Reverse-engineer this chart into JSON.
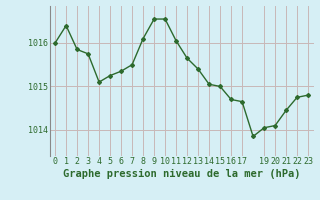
{
  "x": [
    0,
    1,
    2,
    3,
    4,
    5,
    6,
    7,
    8,
    9,
    10,
    11,
    12,
    13,
    14,
    15,
    16,
    17,
    18,
    19,
    20,
    21,
    22,
    23
  ],
  "y": [
    1016.0,
    1016.4,
    1015.85,
    1015.75,
    1015.1,
    1015.25,
    1015.35,
    1015.5,
    1016.1,
    1016.55,
    1016.55,
    1016.05,
    1015.65,
    1015.4,
    1015.05,
    1015.0,
    1014.7,
    1014.65,
    1013.85,
    1014.05,
    1014.1,
    1014.45,
    1014.75,
    1014.8
  ],
  "line_color": "#2d6a2d",
  "marker": "D",
  "markersize": 2.0,
  "linewidth": 1.0,
  "bg_color": "#d6eff5",
  "grid_color": "#c8b8b8",
  "title": "Graphe pression niveau de la mer (hPa)",
  "title_fontsize": 7.5,
  "tick_fontsize": 6.0,
  "yticks": [
    1014,
    1015,
    1016
  ],
  "ylim": [
    1013.4,
    1016.85
  ],
  "xlim": [
    -0.5,
    23.5
  ],
  "xticks": [
    0,
    1,
    2,
    3,
    4,
    5,
    6,
    7,
    8,
    9,
    10,
    11,
    12,
    13,
    14,
    15,
    16,
    17,
    19,
    20,
    21,
    22,
    23
  ],
  "xtick_labels": [
    "0",
    "1",
    "2",
    "3",
    "4",
    "5",
    "6",
    "7",
    "8",
    "9",
    "10",
    "11",
    "12",
    "13",
    "14",
    "15",
    "16",
    "17",
    "19",
    "20",
    "21",
    "22",
    "23"
  ]
}
